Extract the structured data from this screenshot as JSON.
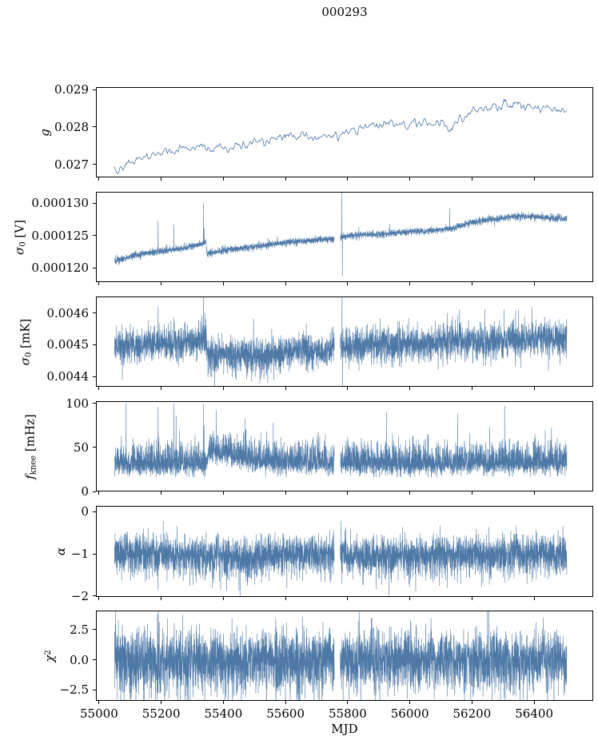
{
  "title": "000293",
  "chart_data": {
    "type": "line",
    "title": "000293",
    "xlabel": "MJD",
    "xlim": [
      54990,
      56590
    ],
    "x_ticks": [
      {
        "v": 55000,
        "label": "55000"
      },
      {
        "v": 55200,
        "label": "55200"
      },
      {
        "v": 55400,
        "label": "55400"
      },
      {
        "v": 55600,
        "label": "55600"
      },
      {
        "v": 55800,
        "label": "55800"
      },
      {
        "v": 56000,
        "label": "56000"
      },
      {
        "v": 56200,
        "label": "56200"
      },
      {
        "v": 56400,
        "label": "56400"
      }
    ],
    "line_color": "#4e79a7",
    "axis_color": "#000000",
    "background": "#ffffff",
    "panels": [
      {
        "name": "g",
        "ylabel": [
          {
            "t": "g",
            "italic": true
          }
        ],
        "ylim": [
          0.02665,
          0.02907
        ],
        "yticks": [
          {
            "v": 0.027,
            "label": "0.027"
          },
          {
            "v": 0.028,
            "label": "0.028"
          },
          {
            "v": 0.029,
            "label": "0.029"
          }
        ],
        "data_range": [
          55048,
          56505
        ],
        "points": 620,
        "noise_sigma": 5.5e-05,
        "smooth": 1,
        "line_width": 0.8,
        "seed": 11,
        "gap_mjd": null,
        "trend_points": [
          [
            55048,
            0.027
          ],
          [
            55058,
            0.0268
          ],
          [
            55068,
            0.02695
          ],
          [
            55080,
            0.0269
          ],
          [
            55095,
            0.02705
          ],
          [
            55120,
            0.0271
          ],
          [
            55150,
            0.0272
          ],
          [
            55180,
            0.02728
          ],
          [
            55210,
            0.02738
          ],
          [
            55240,
            0.02732
          ],
          [
            55260,
            0.02742
          ],
          [
            55280,
            0.02748
          ],
          [
            55300,
            0.02742
          ],
          [
            55320,
            0.02752
          ],
          [
            55340,
            0.02748
          ],
          [
            55360,
            0.02732
          ],
          [
            55380,
            0.02752
          ],
          [
            55400,
            0.02742
          ],
          [
            55420,
            0.02732
          ],
          [
            55440,
            0.02756
          ],
          [
            55460,
            0.02742
          ],
          [
            55480,
            0.02758
          ],
          [
            55500,
            0.0276
          ],
          [
            55520,
            0.02768
          ],
          [
            55540,
            0.02762
          ],
          [
            55560,
            0.02772
          ],
          [
            55580,
            0.02766
          ],
          [
            55600,
            0.02776
          ],
          [
            55620,
            0.0278
          ],
          [
            55640,
            0.02772
          ],
          [
            55660,
            0.02782
          ],
          [
            55680,
            0.02772
          ],
          [
            55700,
            0.02766
          ],
          [
            55720,
            0.02778
          ],
          [
            55740,
            0.02774
          ],
          [
            55770,
            0.02772
          ],
          [
            55790,
            0.02788
          ],
          [
            55810,
            0.02794
          ],
          [
            55830,
            0.02786
          ],
          [
            55850,
            0.02798
          ],
          [
            55870,
            0.02806
          ],
          [
            55890,
            0.02798
          ],
          [
            55910,
            0.02802
          ],
          [
            55930,
            0.02812
          ],
          [
            55950,
            0.02806
          ],
          [
            55970,
            0.02816
          ],
          [
            55990,
            0.02806
          ],
          [
            56010,
            0.02814
          ],
          [
            56030,
            0.0281
          ],
          [
            56050,
            0.02812
          ],
          [
            56070,
            0.02808
          ],
          [
            56090,
            0.02812
          ],
          [
            56110,
            0.02806
          ],
          [
            56130,
            0.02792
          ],
          [
            56150,
            0.02812
          ],
          [
            56170,
            0.02818
          ],
          [
            56190,
            0.02836
          ],
          [
            56210,
            0.02848
          ],
          [
            56230,
            0.02852
          ],
          [
            56250,
            0.02846
          ],
          [
            56270,
            0.02858
          ],
          [
            56290,
            0.0285
          ],
          [
            56310,
            0.02862
          ],
          [
            56330,
            0.02854
          ],
          [
            56350,
            0.02866
          ],
          [
            56370,
            0.02852
          ],
          [
            56390,
            0.02856
          ],
          [
            56410,
            0.02848
          ],
          [
            56430,
            0.02856
          ],
          [
            56450,
            0.02846
          ],
          [
            56470,
            0.02852
          ],
          [
            56490,
            0.02846
          ],
          [
            56505,
            0.0285
          ]
        ],
        "spikes": []
      },
      {
        "name": "sigma0-v",
        "ylabel": [
          {
            "t": "σ",
            "italic": true
          },
          {
            "t": "0",
            "sub": true
          },
          {
            "t": " [V]"
          }
        ],
        "ylim": [
          0.0001178,
          0.00013175
        ],
        "yticks": [
          {
            "v": 0.00012,
            "label": "0.000120"
          },
          {
            "v": 0.000125,
            "label": "0.000125"
          },
          {
            "v": 0.00013,
            "label": "0.000130"
          }
        ],
        "data_range": [
          55050,
          56505
        ],
        "points": 4200,
        "noise_sigma": 2.6e-07,
        "smooth": 0,
        "tail_p": 0.012,
        "tail_scale": 3.2,
        "line_width": 0.6,
        "seed": 22,
        "gap_mjd": [
          55757,
          55776
        ],
        "trend_points": [
          [
            55050,
            0.000121
          ],
          [
            55080,
            0.0001215
          ],
          [
            55120,
            0.000122
          ],
          [
            55160,
            0.0001223
          ],
          [
            55200,
            0.0001226
          ],
          [
            55250,
            0.0001229
          ],
          [
            55300,
            0.0001233
          ],
          [
            55335,
            0.0001238
          ],
          [
            55344,
            0.000124
          ],
          [
            55348,
            0.0001222
          ],
          [
            55400,
            0.0001227
          ],
          [
            55450,
            0.000123
          ],
          [
            55500,
            0.0001233
          ],
          [
            55550,
            0.0001236
          ],
          [
            55600,
            0.0001239
          ],
          [
            55650,
            0.0001241
          ],
          [
            55700,
            0.0001243
          ],
          [
            55756,
            0.0001245
          ],
          [
            55777,
            0.0001248
          ],
          [
            55820,
            0.000125
          ],
          [
            55860,
            0.0001252
          ],
          [
            55900,
            0.0001251
          ],
          [
            55950,
            0.0001254
          ],
          [
            56000,
            0.0001256
          ],
          [
            56050,
            0.0001257
          ],
          [
            56100,
            0.0001258
          ],
          [
            56150,
            0.0001263
          ],
          [
            56200,
            0.000127
          ],
          [
            56250,
            0.0001274
          ],
          [
            56300,
            0.0001277
          ],
          [
            56350,
            0.000128
          ],
          [
            56400,
            0.0001279
          ],
          [
            56450,
            0.0001277
          ],
          [
            56505,
            0.0001276
          ]
        ],
        "spikes": [
          [
            55190,
            0.0001272
          ],
          [
            55241,
            0.0001267
          ],
          [
            55336,
            0.0001301
          ],
          [
            55338,
            0.0001262
          ],
          [
            55781,
            0.0001317
          ],
          [
            55783,
            0.0001187
          ],
          [
            55836,
            0.0001263
          ],
          [
            55936,
            0.0001268
          ],
          [
            56128,
            0.0001292
          ]
        ]
      },
      {
        "name": "sigma0-mk",
        "ylabel": [
          {
            "t": "σ",
            "italic": true
          },
          {
            "t": "0",
            "sub": true
          },
          {
            "t": " [mK]"
          }
        ],
        "ylim": [
          0.004368,
          0.004652
        ],
        "yticks": [
          {
            "v": 0.0044,
            "label": "0.0044"
          },
          {
            "v": 0.0045,
            "label": "0.0045"
          },
          {
            "v": 0.0046,
            "label": "0.0046"
          }
        ],
        "data_range": [
          55050,
          56505
        ],
        "points": 4200,
        "noise_sigma": 2.7e-05,
        "smooth": 0,
        "tail_p": 0.012,
        "tail_scale": 3.0,
        "line_width": 0.6,
        "seed": 33,
        "gap_mjd": [
          55757,
          55776
        ],
        "trend_points": [
          [
            55050,
            0.0045
          ],
          [
            55100,
            0.004495
          ],
          [
            55150,
            0.0045
          ],
          [
            55200,
            0.004505
          ],
          [
            55250,
            0.0045
          ],
          [
            55300,
            0.00451
          ],
          [
            55335,
            0.004515
          ],
          [
            55344,
            0.004515
          ],
          [
            55350,
            0.004465
          ],
          [
            55400,
            0.00447
          ],
          [
            55450,
            0.00446
          ],
          [
            55500,
            0.00447
          ],
          [
            55550,
            0.004465
          ],
          [
            55600,
            0.004475
          ],
          [
            55650,
            0.00448
          ],
          [
            55700,
            0.00448
          ],
          [
            55756,
            0.004485
          ],
          [
            55777,
            0.004495
          ],
          [
            55850,
            0.0045
          ],
          [
            55900,
            0.004505
          ],
          [
            55950,
            0.0045
          ],
          [
            56000,
            0.004505
          ],
          [
            56050,
            0.0045
          ],
          [
            56100,
            0.00451
          ],
          [
            56150,
            0.004515
          ],
          [
            56200,
            0.004505
          ],
          [
            56250,
            0.00451
          ],
          [
            56300,
            0.004515
          ],
          [
            56350,
            0.00452
          ],
          [
            56400,
            0.004515
          ],
          [
            56450,
            0.00452
          ],
          [
            56505,
            0.004515
          ]
        ],
        "spikes": [
          [
            55075,
            0.00439
          ],
          [
            55190,
            0.00462
          ],
          [
            55241,
            0.004585
          ],
          [
            55336,
            0.004668
          ],
          [
            55782,
            0.00467
          ],
          [
            55784,
            0.00437
          ],
          [
            56120,
            0.0046
          ],
          [
            56160,
            0.00461
          ],
          [
            56350,
            0.00461
          ]
        ]
      },
      {
        "name": "fknee",
        "ylabel": [
          {
            "t": "f",
            "italic": true
          },
          {
            "t": "knee",
            "sub": true
          },
          {
            "t": " [mHz]"
          }
        ],
        "ylim": [
          0,
          102.5
        ],
        "yticks": [
          {
            "v": 0,
            "label": "0"
          },
          {
            "v": 50,
            "label": "50"
          },
          {
            "v": 100,
            "label": "100"
          }
        ],
        "data_range": [
          55050,
          56505
        ],
        "points": 4200,
        "noise_sigma": 6.5,
        "smooth": 0,
        "skew_up": 1.85,
        "clamp_min": 16,
        "tail_p": 0.01,
        "tail_scale": 2.5,
        "line_width": 0.6,
        "seed": 44,
        "gap_mjd": [
          55757,
          55776
        ],
        "trend_points": [
          [
            55050,
            31
          ],
          [
            55340,
            31
          ],
          [
            55354,
            46
          ],
          [
            55420,
            41
          ],
          [
            55480,
            36
          ],
          [
            55540,
            33
          ],
          [
            55650,
            33
          ],
          [
            55756,
            32
          ],
          [
            55777,
            32
          ],
          [
            56000,
            31
          ],
          [
            56250,
            32
          ],
          [
            56505,
            32
          ]
        ],
        "spikes": [
          [
            55087,
            100
          ],
          [
            55190,
            96
          ],
          [
            55241,
            100
          ],
          [
            55248,
            86
          ],
          [
            55336,
            99
          ],
          [
            55377,
            92
          ],
          [
            55470,
            83
          ],
          [
            55925,
            90
          ],
          [
            56154,
            88
          ],
          [
            56305,
            97
          ]
        ]
      },
      {
        "name": "alpha",
        "ylabel": [
          {
            "t": "α",
            "italic": true
          }
        ],
        "ylim": [
          -2.02,
          0.135
        ],
        "yticks": [
          {
            "v": -2,
            "label": "−2"
          },
          {
            "v": -1,
            "label": "−1"
          },
          {
            "v": 0,
            "label": "0"
          }
        ],
        "data_range": [
          55050,
          56505
        ],
        "points": 4200,
        "noise_sigma": 0.21,
        "smooth": 0,
        "skew_down": 1.25,
        "tail_p": 0.015,
        "tail_scale": 2.6,
        "line_width": 0.6,
        "seed": 55,
        "gap_mjd": [
          55757,
          55776
        ],
        "trend_points": [
          [
            55050,
            -1.0
          ],
          [
            55150,
            -0.97
          ],
          [
            55250,
            -1.0
          ],
          [
            55350,
            -1.03
          ],
          [
            55430,
            -1.1
          ],
          [
            55470,
            -1.12
          ],
          [
            55520,
            -1.05
          ],
          [
            55600,
            -0.97
          ],
          [
            55650,
            -0.96
          ],
          [
            55700,
            -1.0
          ],
          [
            55756,
            -1.0
          ],
          [
            55777,
            -0.99
          ],
          [
            55850,
            -1.02
          ],
          [
            55950,
            -1.05
          ],
          [
            56050,
            -1.03
          ],
          [
            56150,
            -1.0
          ],
          [
            56250,
            -0.99
          ],
          [
            56350,
            -0.97
          ],
          [
            56450,
            -1.0
          ],
          [
            56505,
            -1.0
          ]
        ],
        "spikes": [
          [
            55190,
            -1.85
          ],
          [
            55364,
            -1.8
          ],
          [
            55500,
            -1.72
          ],
          [
            55779,
            -0.22
          ],
          [
            55781,
            -1.7
          ],
          [
            56115,
            -1.62
          ],
          [
            56305,
            -1.68
          ],
          [
            56377,
            -1.7
          ]
        ]
      },
      {
        "name": "chi2",
        "ylabel": [
          {
            "t": "χ",
            "italic": true
          },
          {
            "t": "2",
            "sup": true
          }
        ],
        "ylim": [
          -3.4,
          4.08
        ],
        "yticks": [
          {
            "v": -2.5,
            "label": "−2.5"
          },
          {
            "v": 0,
            "label": "0.0"
          },
          {
            "v": 2.5,
            "label": "2.5"
          }
        ],
        "data_range": [
          55050,
          56505
        ],
        "points": 4200,
        "noise_sigma": 1.18,
        "smooth": 0,
        "skew_down": 1.15,
        "tail_p": 0.02,
        "tail_scale": 1.8,
        "line_width": 0.6,
        "seed": 66,
        "gap_mjd": [
          55757,
          55776
        ],
        "trend_points": [
          [
            55050,
            0
          ],
          [
            56505,
            0
          ]
        ],
        "spikes": []
      }
    ]
  }
}
